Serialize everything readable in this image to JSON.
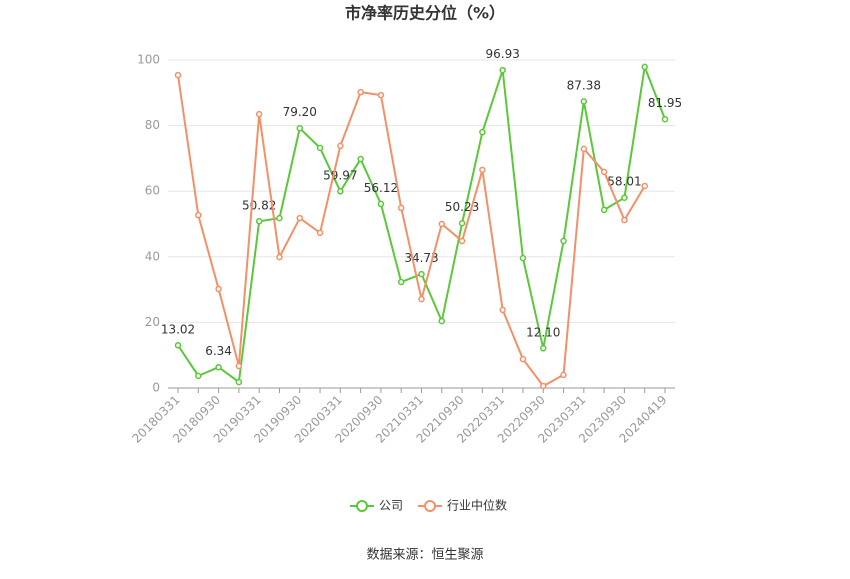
{
  "chart_data": {
    "type": "line",
    "title": "市净率历史分位（%）",
    "categories": [
      "20180331",
      null,
      "20180930",
      null,
      "20190331",
      null,
      "20190930",
      null,
      "20200331",
      null,
      "20200930",
      null,
      "20210331",
      null,
      "20210930",
      null,
      "20220331",
      null,
      "20220930",
      null,
      "20230331",
      null,
      "20230930",
      null,
      "20240419"
    ],
    "series": [
      {
        "name": "公司",
        "color": "#5ac83a",
        "values": [
          13.02,
          3.7,
          6.34,
          1.8,
          50.82,
          51.8,
          79.2,
          73.2,
          59.97,
          69.8,
          56.12,
          32.3,
          34.73,
          20.4,
          50.23,
          78.0,
          96.93,
          39.6,
          12.1,
          44.8,
          87.38,
          54.3,
          58.01,
          97.9,
          81.95
        ],
        "value_labels": [
          "13.02",
          null,
          "6.34",
          null,
          "50.82",
          null,
          "79.20",
          null,
          "59.97",
          null,
          "56.12",
          null,
          "34.73",
          null,
          "50.23",
          null,
          "96.93",
          null,
          "12.10",
          null,
          "87.38",
          null,
          "58.01",
          null,
          "81.95"
        ]
      },
      {
        "name": "行业中位数",
        "color": "#f39068",
        "values": [
          95.4,
          52.7,
          30.2,
          6.7,
          83.5,
          39.9,
          51.8,
          47.3,
          73.8,
          90.2,
          89.3,
          54.9,
          27.1,
          50.0,
          44.8,
          66.5,
          23.8,
          8.8,
          0.6,
          4.0,
          72.9,
          65.9,
          51.2,
          61.6,
          null
        ]
      }
    ],
    "ylim": [
      0,
      100
    ],
    "yticks": [
      0,
      20,
      40,
      60,
      80,
      100
    ],
    "grid": true,
    "source": "数据来源：恒生聚源"
  }
}
